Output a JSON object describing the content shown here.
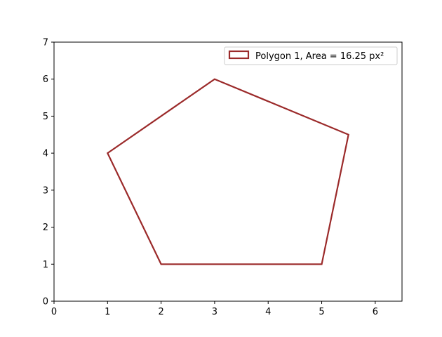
{
  "chart_data": {
    "type": "polygon",
    "title": "",
    "xlabel": "",
    "ylabel": "",
    "xlim": [
      0,
      6.5
    ],
    "ylim": [
      0,
      7
    ],
    "x_ticks": [
      0,
      1,
      2,
      3,
      4,
      5,
      6
    ],
    "y_ticks": [
      0,
      1,
      2,
      3,
      4,
      5,
      6,
      7
    ],
    "grid": false,
    "legend_location": "upper right",
    "series": [
      {
        "name": "Polygon 1, Area = 16.25 px²",
        "color": "#9b2a2a",
        "points": [
          [
            1,
            4
          ],
          [
            3,
            6
          ],
          [
            5.5,
            4.5
          ],
          [
            5,
            1
          ],
          [
            2,
            1
          ]
        ]
      }
    ]
  }
}
